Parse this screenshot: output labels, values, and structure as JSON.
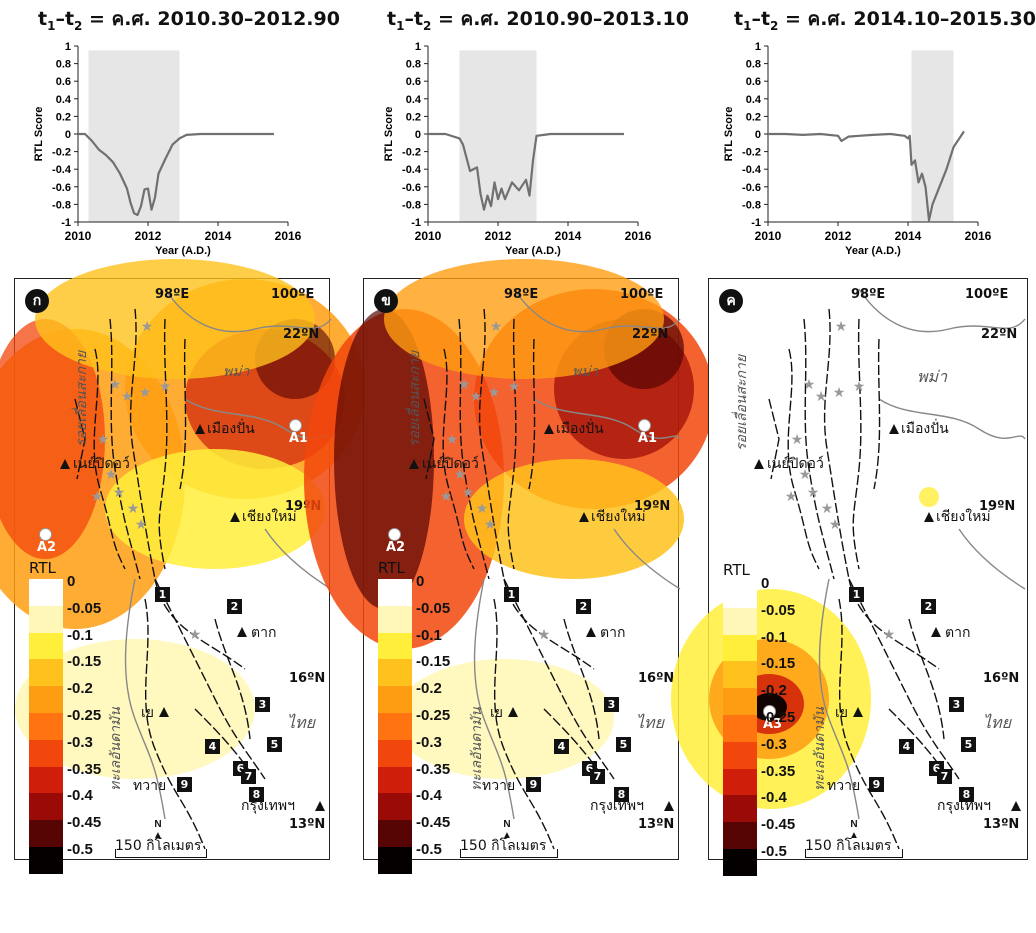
{
  "panels": [
    {
      "title_prefix": "t",
      "sub1": "1",
      "dash": "–t",
      "sub2": "2",
      "title_rest": " = ค.ศ. 2010.30–2012.90",
      "badge": "ก",
      "chart_data": {
        "type": "line",
        "xlabel": "Year (A.D.)",
        "ylabel": "RTL Score",
        "xlim": [
          2010,
          2016
        ],
        "ylim": [
          -1,
          1
        ],
        "xticks": [
          "2010",
          "2012",
          "2014",
          "2016"
        ],
        "yticks": [
          "1",
          "0.8",
          "0.6",
          "0.4",
          "0.2",
          "0",
          "-0.2",
          "-0.4",
          "-0.6",
          "-0.8",
          "-1"
        ],
        "shade": [
          2010.3,
          2012.9
        ],
        "x": [
          2010.0,
          2010.2,
          2010.4,
          2010.6,
          2010.8,
          2011.0,
          2011.2,
          2011.4,
          2011.5,
          2011.6,
          2011.7,
          2011.8,
          2011.9,
          2012.0,
          2012.1,
          2012.2,
          2012.3,
          2012.5,
          2012.7,
          2012.9,
          2013.1,
          2013.5,
          2014.0,
          2014.5,
          2015.0,
          2015.6
        ],
        "y": [
          0.0,
          0.0,
          -0.08,
          -0.18,
          -0.24,
          -0.32,
          -0.45,
          -0.62,
          -0.78,
          -0.9,
          -0.92,
          -0.82,
          -0.63,
          -0.62,
          -0.86,
          -0.72,
          -0.45,
          -0.28,
          -0.12,
          -0.05,
          -0.01,
          0.0,
          0.0,
          0.0,
          0.0,
          0.0
        ]
      }
    },
    {
      "title_prefix": "t",
      "sub1": "1",
      "dash": "–t",
      "sub2": "2",
      "title_rest": " = ค.ศ. 2010.90–2013.10",
      "badge": "ข",
      "chart_data": {
        "type": "line",
        "xlabel": "Year (A.D.)",
        "ylabel": "RTL Score",
        "xlim": [
          2010,
          2016
        ],
        "ylim": [
          -1,
          1
        ],
        "xticks": [
          "2010",
          "2012",
          "2014",
          "2016"
        ],
        "yticks": [
          "1",
          "0.8",
          "0.6",
          "0.4",
          "0.2",
          "0",
          "-0.2",
          "-0.4",
          "-0.6",
          "-0.8",
          "-1"
        ],
        "shade": [
          2010.9,
          2013.1
        ],
        "x": [
          2010.0,
          2010.5,
          2010.9,
          2011.0,
          2011.2,
          2011.4,
          2011.5,
          2011.6,
          2011.7,
          2011.8,
          2011.9,
          2012.0,
          2012.1,
          2012.2,
          2012.4,
          2012.6,
          2012.8,
          2012.9,
          2013.0,
          2013.1,
          2013.5,
          2014.0,
          2015.0,
          2015.6
        ],
        "y": [
          0.0,
          0.0,
          -0.05,
          -0.12,
          -0.42,
          -0.38,
          -0.68,
          -0.86,
          -0.7,
          -0.82,
          -0.55,
          -0.74,
          -0.62,
          -0.74,
          -0.55,
          -0.64,
          -0.52,
          -0.7,
          -0.3,
          -0.02,
          0.0,
          0.0,
          0.0,
          0.0
        ]
      }
    },
    {
      "title_prefix": "t",
      "sub1": "1",
      "dash": "–t",
      "sub2": "2",
      "title_rest": " = ค.ศ. 2014.10–2015.30",
      "badge": "ค",
      "chart_data": {
        "type": "line",
        "xlabel": "Year (A.D.)",
        "ylabel": "RTL Score",
        "xlim": [
          2010,
          2016
        ],
        "ylim": [
          -1,
          1
        ],
        "xticks": [
          "2010",
          "2012",
          "2014",
          "2016"
        ],
        "yticks": [
          "1",
          "0.8",
          "0.6",
          "0.4",
          "0.2",
          "0",
          "-0.2",
          "-0.4",
          "-0.6",
          "-0.8",
          "-1"
        ],
        "shade": [
          2014.1,
          2015.3
        ],
        "x": [
          2010.0,
          2010.5,
          2011.0,
          2011.5,
          2012.0,
          2012.1,
          2012.3,
          2012.6,
          2013.0,
          2013.5,
          2013.9,
          2014.0,
          2014.05,
          2014.1,
          2014.2,
          2014.3,
          2014.4,
          2014.5,
          2014.6,
          2014.7,
          2014.9,
          2015.1,
          2015.3,
          2015.6
        ],
        "y": [
          0.0,
          0.0,
          -0.01,
          0.0,
          -0.02,
          -0.08,
          -0.03,
          -0.02,
          -0.01,
          0.0,
          -0.02,
          -0.05,
          -0.02,
          -0.35,
          -0.3,
          -0.55,
          -0.45,
          -0.6,
          -0.98,
          -0.8,
          -0.6,
          -0.4,
          -0.15,
          0.03
        ]
      }
    }
  ],
  "map": {
    "lon_labels": [
      "98ºE",
      "100ºE"
    ],
    "lat_labels": [
      "22ºN",
      "19ºN",
      "16ºN",
      "13ºN"
    ],
    "places": {
      "myanmar": "พม่า",
      "thailand": "ไทย",
      "muangpan": "เมืองปั่น",
      "naypyidaw": "เนย์ปิดอว์",
      "chiangmai": "เชียงใหม่",
      "tak": "ตาก",
      "ye": "เย",
      "dawei": "ทวาย",
      "bangkok": "กรุงเทพฯ",
      "sagaing": "รอยเลื่อนสะกาย",
      "andaman": "ทะเลอันดามัน"
    },
    "stations": [
      "A1",
      "A2",
      "A3"
    ],
    "numbers": [
      "1",
      "2",
      "3",
      "4",
      "5",
      "6",
      "7",
      "8",
      "9"
    ],
    "scale_label": "150 กิโลเมตร",
    "north": "N"
  },
  "legend": {
    "title": "RTL",
    "values": [
      "0",
      "-0.05",
      "-0.1",
      "-0.15",
      "-0.2",
      "-0.25",
      "-0.3",
      "-0.35",
      "-0.4",
      "-0.45",
      "-0.5"
    ],
    "colors": [
      "#ffffff",
      "#fff7b8",
      "#ffee3a",
      "#ffc21c",
      "#ff9d12",
      "#ff7410",
      "#f2470c",
      "#cf1f0b",
      "#9a0a07",
      "#560404",
      "#050000"
    ]
  }
}
